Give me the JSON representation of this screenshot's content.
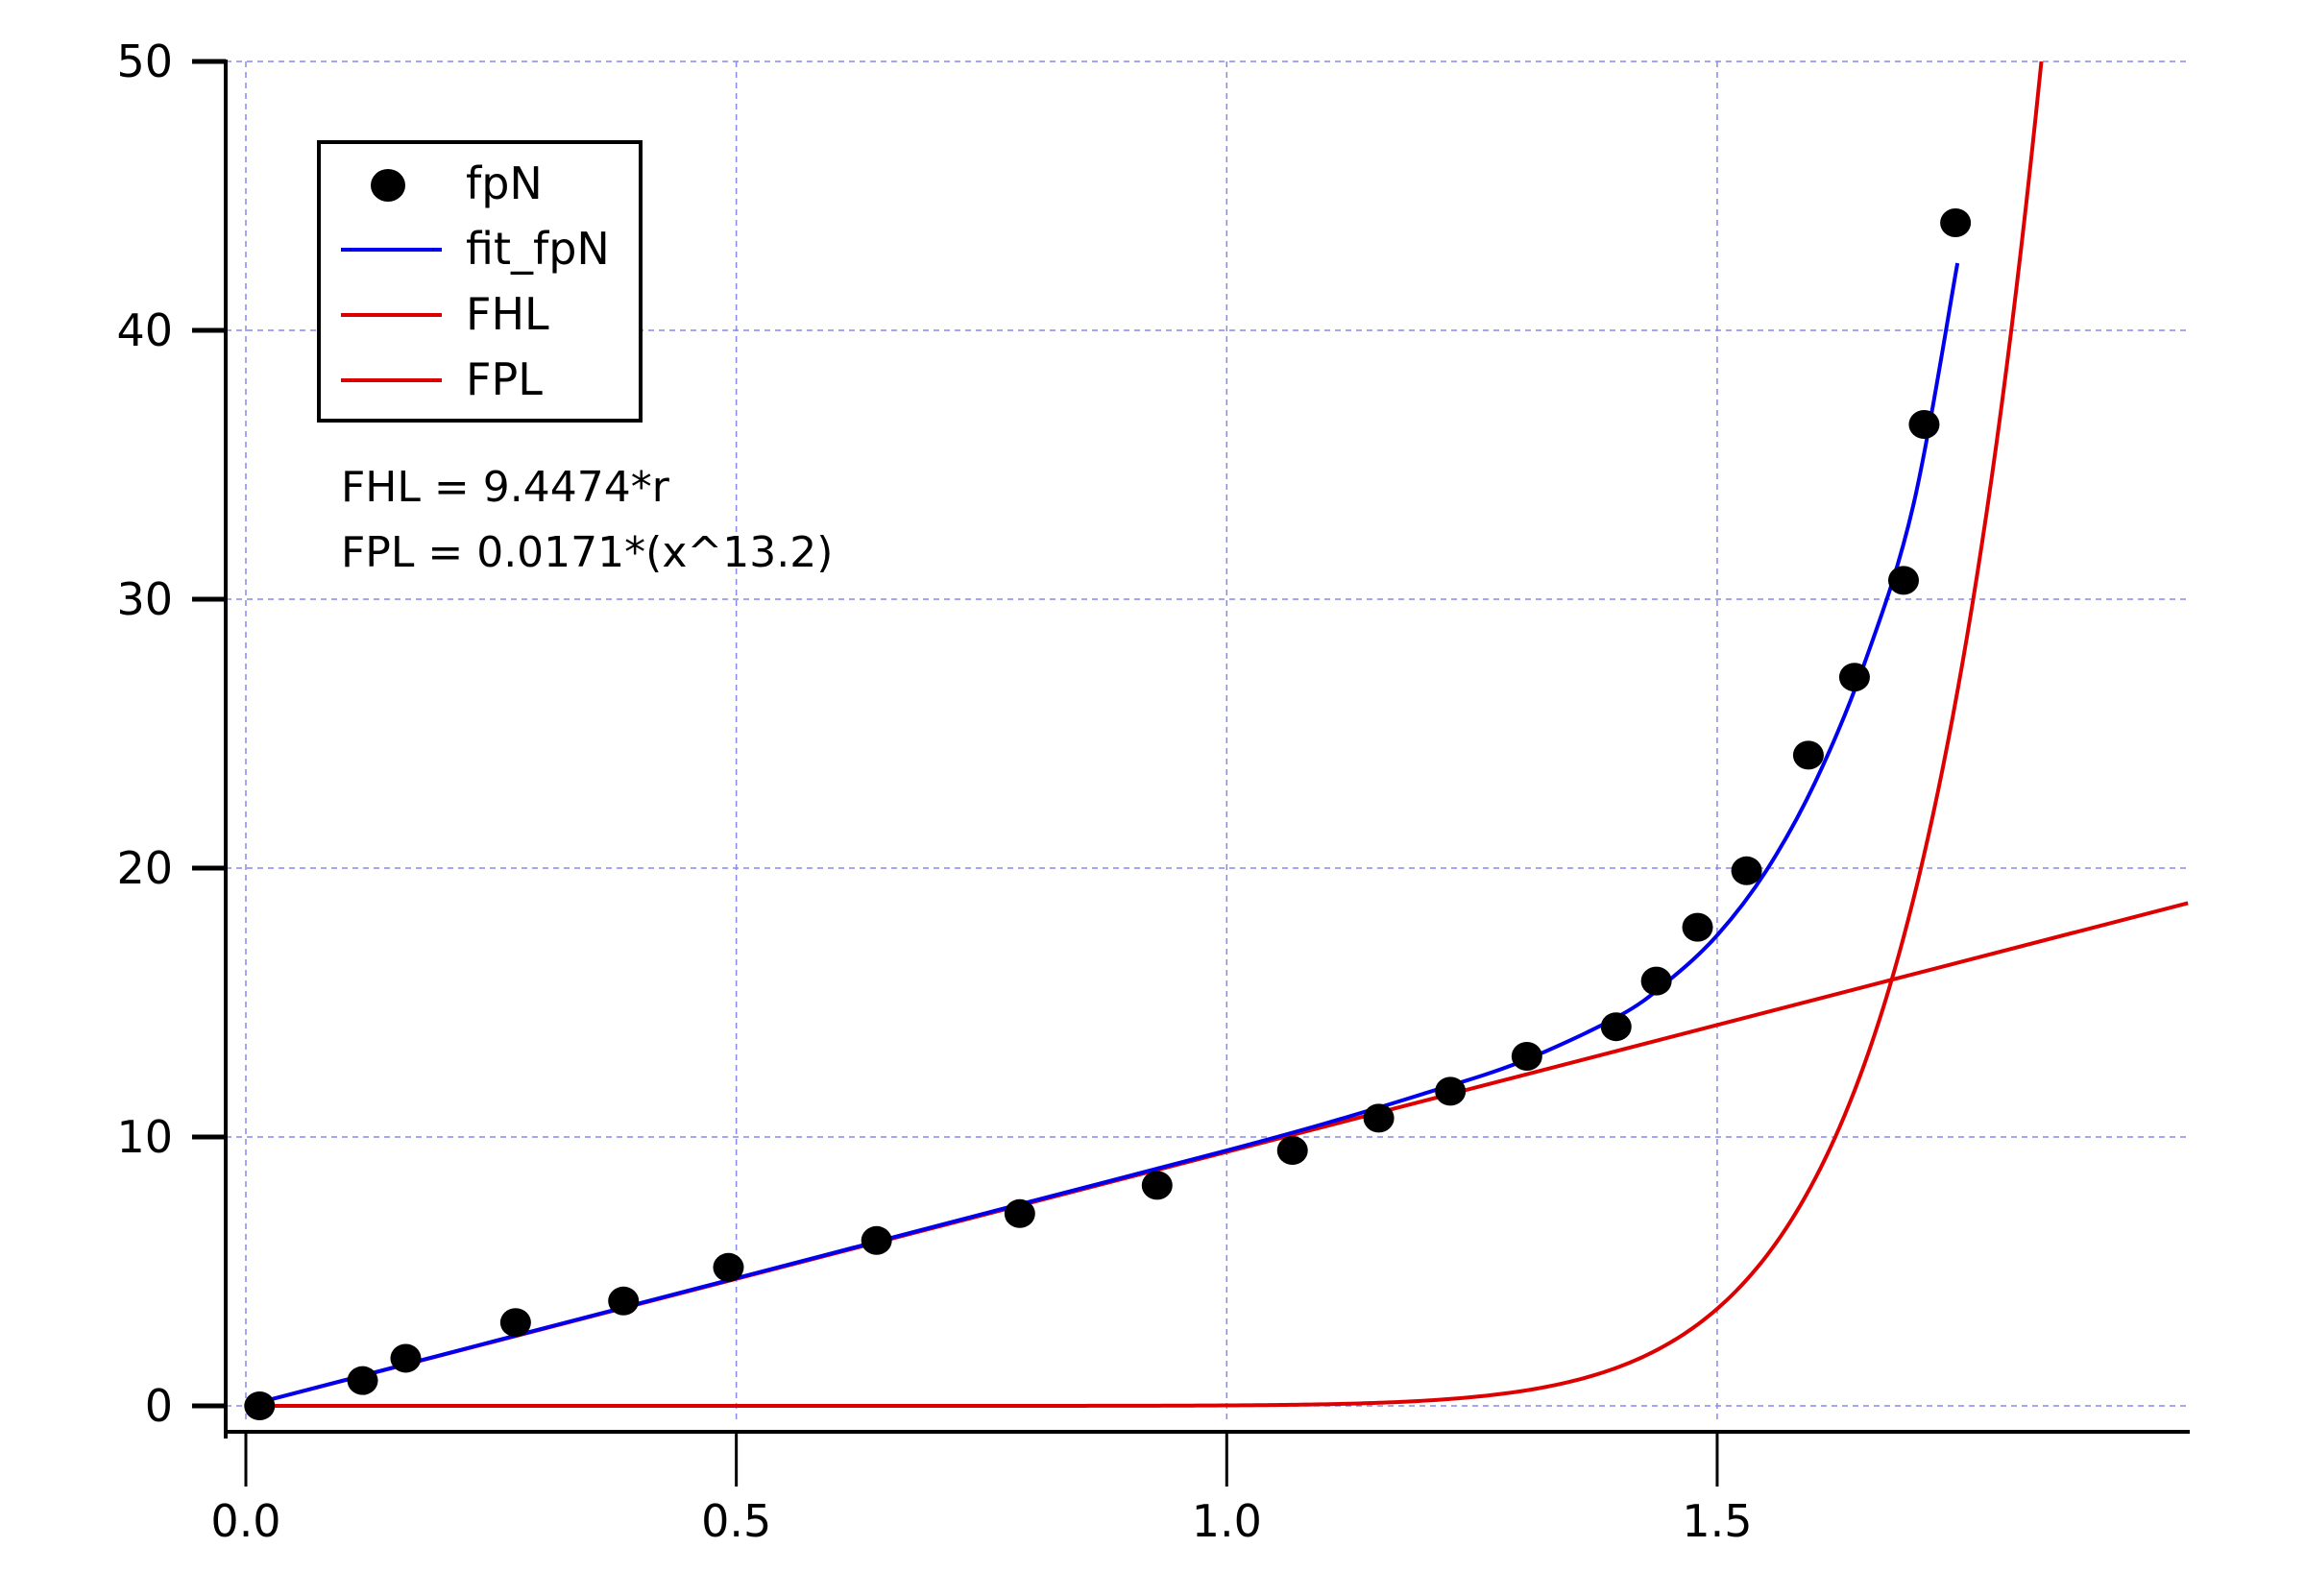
{
  "chart_data": {
    "type": "scatter",
    "title": "",
    "xlabel": "",
    "ylabel": "",
    "xlim": [
      -0.02,
      1.98
    ],
    "ylim": [
      -1,
      50
    ],
    "grid": true,
    "legend_position": "top-left",
    "x_ticks": [
      0.0,
      0.5,
      1.0,
      1.5
    ],
    "x_tick_labels": [
      "0.0",
      "0.5",
      "1.0",
      "1.5"
    ],
    "y_ticks": [
      0,
      10,
      20,
      30,
      40,
      50
    ],
    "y_tick_labels": [
      "0",
      "10",
      "20",
      "30",
      "40",
      "50"
    ],
    "series": [
      {
        "name": "fpN",
        "kind": "markers",
        "color": "#000000",
        "x": [
          0.014,
          0.119,
          0.163,
          0.275,
          0.385,
          0.492,
          0.643,
          0.789,
          0.929,
          1.067,
          1.155,
          1.228,
          1.306,
          1.397,
          1.438,
          1.48,
          1.53,
          1.593,
          1.64,
          1.69,
          1.711,
          1.743
        ],
        "y": [
          0.0,
          0.94,
          1.77,
          3.1,
          3.9,
          5.15,
          6.15,
          7.15,
          8.2,
          9.5,
          10.7,
          11.7,
          13.0,
          14.1,
          15.8,
          17.8,
          19.9,
          24.2,
          27.1,
          30.7,
          36.5,
          44.0
        ]
      },
      {
        "name": "fit_fpN",
        "kind": "line",
        "color": "#0000ee",
        "x": [
          0.0,
          0.2,
          0.4,
          0.6,
          0.8,
          1.0,
          1.1,
          1.2,
          1.3,
          1.4,
          1.45,
          1.5,
          1.55,
          1.6,
          1.65,
          1.7,
          1.745
        ],
        "y": [
          0.0,
          1.9,
          3.8,
          5.7,
          7.6,
          9.5,
          10.5,
          11.6,
          12.8,
          14.5,
          15.8,
          17.5,
          19.9,
          23.2,
          27.6,
          33.5,
          42.5
        ]
      },
      {
        "name": "FHL",
        "kind": "line",
        "color": "#dd0000",
        "formula": "FHL = 9.4474*r",
        "x": [
          0.0,
          1.98
        ],
        "y": [
          0.0,
          18.7
        ]
      },
      {
        "name": "FPL",
        "kind": "line",
        "color": "#dd0000",
        "formula": "FPL = 0.0171*(x^13.2)",
        "coef": 0.0171,
        "exponent": 13.2
      }
    ],
    "annotations": [
      "FHL = 9.4474*r",
      "FPL = 0.0171*(x^13.2)"
    ]
  },
  "legend": {
    "items": [
      {
        "label": "fpN",
        "symbol": "dot",
        "color": "#000000"
      },
      {
        "label": "fit_fpN",
        "symbol": "line",
        "color": "#0000ee"
      },
      {
        "label": "FHL",
        "symbol": "line",
        "color": "#dd0000"
      },
      {
        "label": "FPL",
        "symbol": "line",
        "color": "#dd0000"
      }
    ]
  },
  "annotations": {
    "fhl_formula": "FHL = 9.4474*r",
    "fpl_formula": "FPL = 0.0171*(x^13.2)"
  },
  "axes": {
    "x_labels": [
      "0.0",
      "0.5",
      "1.0",
      "1.5"
    ],
    "y_labels": [
      "0",
      "10",
      "20",
      "30",
      "40",
      "50"
    ]
  },
  "colors": {
    "grid": "#8888ee",
    "fit": "#0000ee",
    "model": "#dd0000",
    "data": "#000000"
  }
}
